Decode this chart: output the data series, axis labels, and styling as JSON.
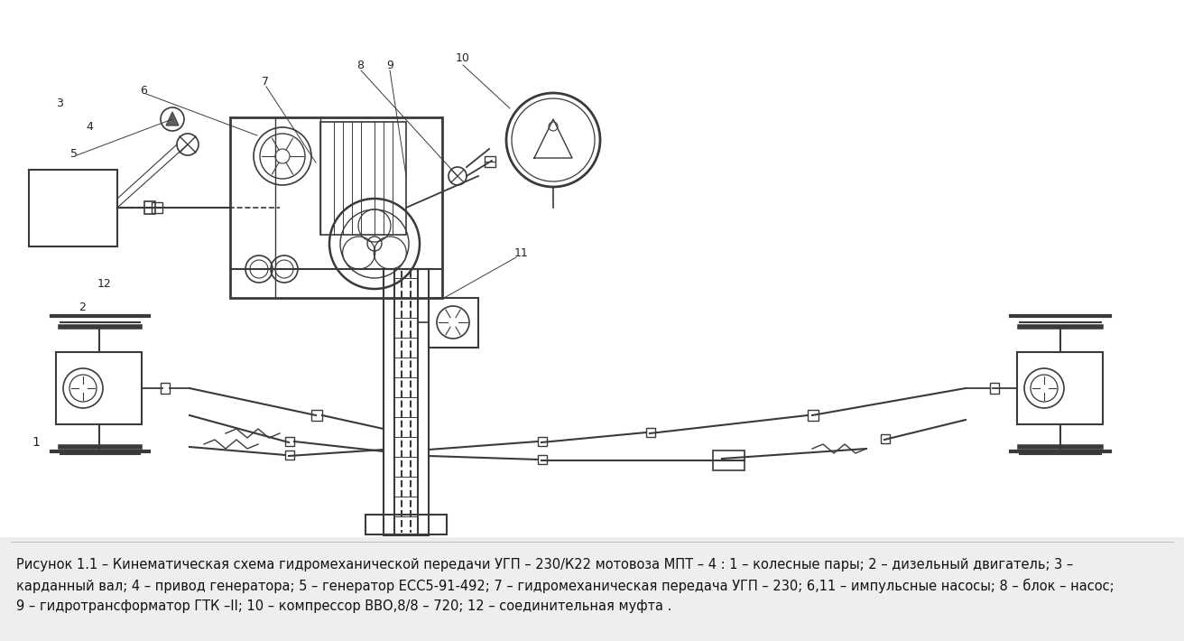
{
  "background_color": "#ececec",
  "line_color": "#3a3a3a",
  "caption_line1": "Рисунок 1.1 – Кинематическая схема гидромеханической передачи УГП – 230/К22 мотовоза МПТ – 4 : 1 – колесные пары; 2 – дизельный двигатель; 3 –",
  "caption_line2": "карданный вал; 4 – привод генератора; 5 – генератор ЕСС5-91-492; 7 – гидромеханическая передача УГП – 230; 6,11 – импульсные насосы; 8 – блок – насос;",
  "caption_line3": "9 – гидротрансформатор ГТК –II; 10 – компрессор ВВО,8/8 – 720; 12 – соединительная муфта .",
  "caption_fontsize": 10.5,
  "fig_width": 13.12,
  "fig_height": 7.1
}
